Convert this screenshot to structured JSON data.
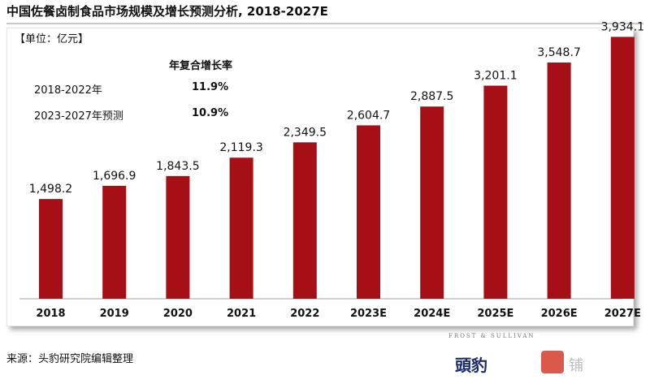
{
  "header": {
    "title": "中国佐餐卤制食品市场规模及增长预测分析, 2018-2027E"
  },
  "unit_label": "【单位：亿元】",
  "cagr": {
    "heading": "年复合增长率",
    "rows": [
      {
        "period": "2018-2022年",
        "rate": "11.9%"
      },
      {
        "period": "2023-2027年预测",
        "rate": "10.9%"
      }
    ]
  },
  "footer": {
    "source": "来源：头豹研究院编辑整理"
  },
  "watermarks": {
    "frost_sullivan": "FROST & SULLIVAN",
    "brand": "頭豹",
    "store": "铺"
  },
  "colors": {
    "bar": "#a50f15",
    "text": "#111111"
  },
  "chart_data": {
    "type": "bar",
    "title": "中国佐餐卤制食品市场规模及增长预测分析, 2018-2027E",
    "ylabel": "",
    "xlabel": "",
    "categories": [
      "2018",
      "2019",
      "2020",
      "2021",
      "2022",
      "2023E",
      "2024E",
      "2025E",
      "2026E",
      "2027E"
    ],
    "values": [
      1498.2,
      1696.9,
      1843.5,
      2119.3,
      2349.5,
      2604.7,
      2887.5,
      3201.1,
      3548.7,
      3934.1
    ],
    "value_labels": [
      "1,498.2",
      "1,696.9",
      "1,843.5",
      "2,119.3",
      "2,349.5",
      "2,604.7",
      "2,887.5",
      "3,201.1",
      "3,548.7",
      "3,934.1"
    ],
    "ylim": [
      0,
      4000
    ],
    "grid": false,
    "legend": "none"
  }
}
